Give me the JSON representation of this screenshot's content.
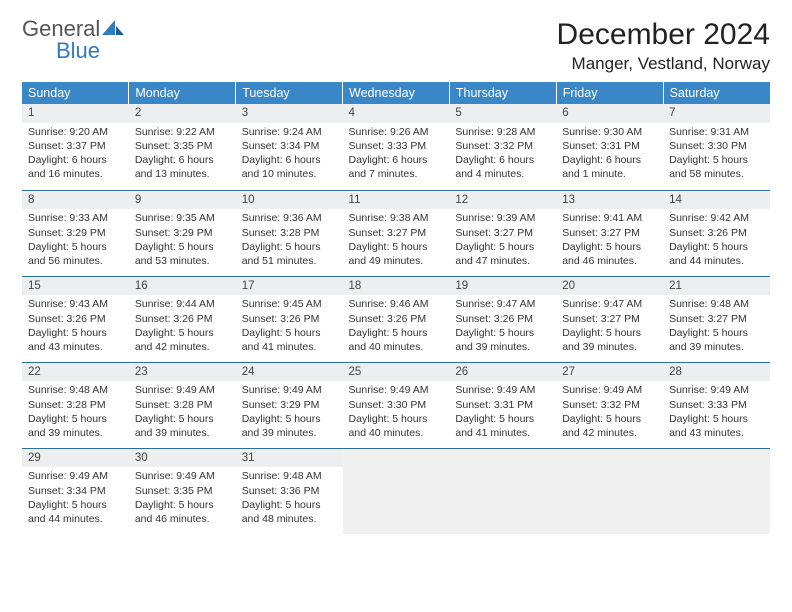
{
  "logo": {
    "line1": "General",
    "line2": "Blue"
  },
  "title": "December 2024",
  "location": "Manger, Vestland, Norway",
  "colors": {
    "header_bg": "#3a87c8",
    "header_fg": "#ffffff",
    "row_divider": "#2b6ca3",
    "daynum_bg": "#eceeef",
    "blank_bg": "#f0f0f0",
    "logo_accent": "#2f7bbf"
  },
  "weekdays": [
    "Sunday",
    "Monday",
    "Tuesday",
    "Wednesday",
    "Thursday",
    "Friday",
    "Saturday"
  ],
  "weeks": [
    [
      {
        "n": "1",
        "sr": "9:20 AM",
        "ss": "3:37 PM",
        "dl": "6 hours and 16 minutes."
      },
      {
        "n": "2",
        "sr": "9:22 AM",
        "ss": "3:35 PM",
        "dl": "6 hours and 13 minutes."
      },
      {
        "n": "3",
        "sr": "9:24 AM",
        "ss": "3:34 PM",
        "dl": "6 hours and 10 minutes."
      },
      {
        "n": "4",
        "sr": "9:26 AM",
        "ss": "3:33 PM",
        "dl": "6 hours and 7 minutes."
      },
      {
        "n": "5",
        "sr": "9:28 AM",
        "ss": "3:32 PM",
        "dl": "6 hours and 4 minutes."
      },
      {
        "n": "6",
        "sr": "9:30 AM",
        "ss": "3:31 PM",
        "dl": "6 hours and 1 minute."
      },
      {
        "n": "7",
        "sr": "9:31 AM",
        "ss": "3:30 PM",
        "dl": "5 hours and 58 minutes."
      }
    ],
    [
      {
        "n": "8",
        "sr": "9:33 AM",
        "ss": "3:29 PM",
        "dl": "5 hours and 56 minutes."
      },
      {
        "n": "9",
        "sr": "9:35 AM",
        "ss": "3:29 PM",
        "dl": "5 hours and 53 minutes."
      },
      {
        "n": "10",
        "sr": "9:36 AM",
        "ss": "3:28 PM",
        "dl": "5 hours and 51 minutes."
      },
      {
        "n": "11",
        "sr": "9:38 AM",
        "ss": "3:27 PM",
        "dl": "5 hours and 49 minutes."
      },
      {
        "n": "12",
        "sr": "9:39 AM",
        "ss": "3:27 PM",
        "dl": "5 hours and 47 minutes."
      },
      {
        "n": "13",
        "sr": "9:41 AM",
        "ss": "3:27 PM",
        "dl": "5 hours and 46 minutes."
      },
      {
        "n": "14",
        "sr": "9:42 AM",
        "ss": "3:26 PM",
        "dl": "5 hours and 44 minutes."
      }
    ],
    [
      {
        "n": "15",
        "sr": "9:43 AM",
        "ss": "3:26 PM",
        "dl": "5 hours and 43 minutes."
      },
      {
        "n": "16",
        "sr": "9:44 AM",
        "ss": "3:26 PM",
        "dl": "5 hours and 42 minutes."
      },
      {
        "n": "17",
        "sr": "9:45 AM",
        "ss": "3:26 PM",
        "dl": "5 hours and 41 minutes."
      },
      {
        "n": "18",
        "sr": "9:46 AM",
        "ss": "3:26 PM",
        "dl": "5 hours and 40 minutes."
      },
      {
        "n": "19",
        "sr": "9:47 AM",
        "ss": "3:26 PM",
        "dl": "5 hours and 39 minutes."
      },
      {
        "n": "20",
        "sr": "9:47 AM",
        "ss": "3:27 PM",
        "dl": "5 hours and 39 minutes."
      },
      {
        "n": "21",
        "sr": "9:48 AM",
        "ss": "3:27 PM",
        "dl": "5 hours and 39 minutes."
      }
    ],
    [
      {
        "n": "22",
        "sr": "9:48 AM",
        "ss": "3:28 PM",
        "dl": "5 hours and 39 minutes."
      },
      {
        "n": "23",
        "sr": "9:49 AM",
        "ss": "3:28 PM",
        "dl": "5 hours and 39 minutes."
      },
      {
        "n": "24",
        "sr": "9:49 AM",
        "ss": "3:29 PM",
        "dl": "5 hours and 39 minutes."
      },
      {
        "n": "25",
        "sr": "9:49 AM",
        "ss": "3:30 PM",
        "dl": "5 hours and 40 minutes."
      },
      {
        "n": "26",
        "sr": "9:49 AM",
        "ss": "3:31 PM",
        "dl": "5 hours and 41 minutes."
      },
      {
        "n": "27",
        "sr": "9:49 AM",
        "ss": "3:32 PM",
        "dl": "5 hours and 42 minutes."
      },
      {
        "n": "28",
        "sr": "9:49 AM",
        "ss": "3:33 PM",
        "dl": "5 hours and 43 minutes."
      }
    ],
    [
      {
        "n": "29",
        "sr": "9:49 AM",
        "ss": "3:34 PM",
        "dl": "5 hours and 44 minutes."
      },
      {
        "n": "30",
        "sr": "9:49 AM",
        "ss": "3:35 PM",
        "dl": "5 hours and 46 minutes."
      },
      {
        "n": "31",
        "sr": "9:48 AM",
        "ss": "3:36 PM",
        "dl": "5 hours and 48 minutes."
      },
      null,
      null,
      null,
      null
    ]
  ],
  "labels": {
    "sunrise": "Sunrise: ",
    "sunset": "Sunset: ",
    "daylight": "Daylight: "
  }
}
